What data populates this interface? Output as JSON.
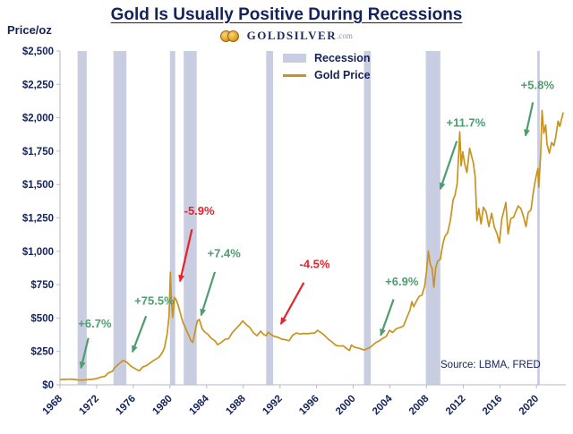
{
  "header": {
    "title": "Gold Is Usually Positive During Recessions",
    "logo_text": "GOLDSILVER",
    "logo_tld": ".com"
  },
  "chart": {
    "y_axis_title": "Price/oz",
    "source": "Source: LBMA, FRED",
    "legend": [
      {
        "label": "Recession"
      },
      {
        "label": "Gold Price"
      }
    ]
  },
  "chart_data": {
    "type": "line",
    "title": "Gold Is Usually Positive During Recessions",
    "xlabel": "",
    "ylabel": "Price/oz",
    "legend_entries": [
      "Recession",
      "Gold Price"
    ],
    "source": "Source: LBMA, FRED",
    "x_range": [
      1968,
      2023.2
    ],
    "y_range": [
      0,
      2500
    ],
    "y_tick_values": [
      0,
      250,
      500,
      750,
      1000,
      1250,
      1500,
      1750,
      2000,
      2250,
      2500
    ],
    "y_tick_labels": [
      "$0",
      "$250",
      "$500",
      "$750",
      "$1,000",
      "$1,250",
      "$1,500",
      "$1,750",
      "$2,000",
      "$2,250",
      "$2,500"
    ],
    "x_tick_values": [
      1968,
      1972,
      1976,
      1980,
      1984,
      1988,
      1992,
      1996,
      2000,
      2004,
      2008,
      2012,
      2016,
      2020
    ],
    "x_tick_labels": [
      "1968",
      "1972",
      "1976",
      "1980",
      "1984",
      "1988",
      "1992",
      "1996",
      "2000",
      "2004",
      "2008",
      "2012",
      "2016",
      "2020"
    ],
    "colors": {
      "gold": "#c8941f",
      "recession": "#c9cde2",
      "green": "#4f9d6e",
      "red": "#e9212a",
      "navy": "#14225a",
      "axis": "#b6bac8"
    },
    "recessions": [
      [
        1969.92,
        1970.92
      ],
      [
        1973.83,
        1975.25
      ],
      [
        1980.0,
        1980.58
      ],
      [
        1981.5,
        1982.92
      ],
      [
        1990.5,
        1991.25
      ],
      [
        2001.17,
        2001.92
      ],
      [
        2007.92,
        2009.5
      ],
      [
        2020.08,
        2020.33
      ]
    ],
    "series": [
      {
        "name": "Gold Price",
        "points": [
          [
            1968.0,
            39
          ],
          [
            1968.5,
            40
          ],
          [
            1969.0,
            42
          ],
          [
            1969.5,
            41
          ],
          [
            1970.0,
            36
          ],
          [
            1970.5,
            35
          ],
          [
            1971.0,
            39
          ],
          [
            1971.5,
            41
          ],
          [
            1972.0,
            46
          ],
          [
            1972.5,
            58
          ],
          [
            1972.9,
            64
          ],
          [
            1973.3,
            90
          ],
          [
            1973.7,
            100
          ],
          [
            1974.0,
            130
          ],
          [
            1974.4,
            155
          ],
          [
            1974.9,
            183
          ],
          [
            1975.3,
            168
          ],
          [
            1975.7,
            142
          ],
          [
            1976.0,
            128
          ],
          [
            1976.4,
            112
          ],
          [
            1976.7,
            106
          ],
          [
            1977.0,
            132
          ],
          [
            1977.5,
            146
          ],
          [
            1978.0,
            172
          ],
          [
            1978.4,
            190
          ],
          [
            1978.8,
            206
          ],
          [
            1979.1,
            233
          ],
          [
            1979.4,
            277
          ],
          [
            1979.7,
            385
          ],
          [
            1979.9,
            512
          ],
          [
            1980.05,
            843
          ],
          [
            1980.15,
            640
          ],
          [
            1980.3,
            505
          ],
          [
            1980.5,
            655
          ],
          [
            1980.7,
            635
          ],
          [
            1980.9,
            595
          ],
          [
            1981.1,
            545
          ],
          [
            1981.4,
            470
          ],
          [
            1981.7,
            425
          ],
          [
            1982.0,
            378
          ],
          [
            1982.3,
            330
          ],
          [
            1982.5,
            318
          ],
          [
            1982.8,
            420
          ],
          [
            1983.0,
            480
          ],
          [
            1983.2,
            490
          ],
          [
            1983.5,
            420
          ],
          [
            1983.8,
            395
          ],
          [
            1984.1,
            381
          ],
          [
            1984.5,
            348
          ],
          [
            1984.9,
            330
          ],
          [
            1985.2,
            300
          ],
          [
            1985.6,
            317
          ],
          [
            1986.0,
            340
          ],
          [
            1986.4,
            345
          ],
          [
            1986.8,
            390
          ],
          [
            1987.2,
            420
          ],
          [
            1987.6,
            450
          ],
          [
            1987.95,
            478
          ],
          [
            1988.3,
            452
          ],
          [
            1988.7,
            430
          ],
          [
            1989.1,
            390
          ],
          [
            1989.5,
            368
          ],
          [
            1989.9,
            402
          ],
          [
            1990.2,
            378
          ],
          [
            1990.5,
            368
          ],
          [
            1990.7,
            395
          ],
          [
            1991.0,
            378
          ],
          [
            1991.4,
            362
          ],
          [
            1991.8,
            355
          ],
          [
            1992.2,
            342
          ],
          [
            1992.6,
            338
          ],
          [
            1993.0,
            330
          ],
          [
            1993.4,
            372
          ],
          [
            1993.8,
            388
          ],
          [
            1994.2,
            380
          ],
          [
            1994.6,
            385
          ],
          [
            1995.0,
            382
          ],
          [
            1995.4,
            386
          ],
          [
            1995.8,
            388
          ],
          [
            1996.1,
            408
          ],
          [
            1996.5,
            390
          ],
          [
            1996.9,
            368
          ],
          [
            1997.3,
            340
          ],
          [
            1997.7,
            320
          ],
          [
            1998.1,
            295
          ],
          [
            1998.5,
            290
          ],
          [
            1998.9,
            292
          ],
          [
            1999.3,
            270
          ],
          [
            1999.6,
            257
          ],
          [
            1999.8,
            298
          ],
          [
            2000.1,
            283
          ],
          [
            2000.5,
            276
          ],
          [
            2000.9,
            268
          ],
          [
            2001.2,
            260
          ],
          [
            2001.5,
            270
          ],
          [
            2001.8,
            278
          ],
          [
            2002.1,
            295
          ],
          [
            2002.5,
            318
          ],
          [
            2002.9,
            332
          ],
          [
            2003.2,
            348
          ],
          [
            2003.6,
            362
          ],
          [
            2003.95,
            408
          ],
          [
            2004.3,
            392
          ],
          [
            2004.7,
            420
          ],
          [
            2005.1,
            428
          ],
          [
            2005.5,
            442
          ],
          [
            2005.9,
            512
          ],
          [
            2006.2,
            560
          ],
          [
            2006.4,
            622
          ],
          [
            2006.6,
            585
          ],
          [
            2006.9,
            628
          ],
          [
            2007.2,
            662
          ],
          [
            2007.5,
            672
          ],
          [
            2007.8,
            740
          ],
          [
            2008.0,
            850
          ],
          [
            2008.2,
            1002
          ],
          [
            2008.4,
            905
          ],
          [
            2008.6,
            872
          ],
          [
            2008.8,
            732
          ],
          [
            2009.0,
            878
          ],
          [
            2009.2,
            925
          ],
          [
            2009.5,
            940
          ],
          [
            2009.8,
            1060
          ],
          [
            2010.0,
            1110
          ],
          [
            2010.3,
            1140
          ],
          [
            2010.6,
            1230
          ],
          [
            2010.9,
            1385
          ],
          [
            2011.1,
            1420
          ],
          [
            2011.35,
            1510
          ],
          [
            2011.62,
            1895
          ],
          [
            2011.78,
            1640
          ],
          [
            2011.95,
            1745
          ],
          [
            2012.15,
            1660
          ],
          [
            2012.4,
            1590
          ],
          [
            2012.7,
            1772
          ],
          [
            2012.9,
            1715
          ],
          [
            2013.1,
            1665
          ],
          [
            2013.3,
            1560
          ],
          [
            2013.5,
            1230
          ],
          [
            2013.7,
            1320
          ],
          [
            2013.95,
            1205
          ],
          [
            2014.2,
            1330
          ],
          [
            2014.5,
            1295
          ],
          [
            2014.8,
            1185
          ],
          [
            2015.1,
            1285
          ],
          [
            2015.4,
            1180
          ],
          [
            2015.7,
            1130
          ],
          [
            2015.95,
            1062
          ],
          [
            2016.2,
            1240
          ],
          [
            2016.5,
            1320
          ],
          [
            2016.65,
            1365
          ],
          [
            2016.9,
            1130
          ],
          [
            2017.2,
            1245
          ],
          [
            2017.5,
            1255
          ],
          [
            2017.7,
            1290
          ],
          [
            2018.0,
            1340
          ],
          [
            2018.3,
            1320
          ],
          [
            2018.6,
            1255
          ],
          [
            2018.85,
            1185
          ],
          [
            2019.1,
            1290
          ],
          [
            2019.4,
            1310
          ],
          [
            2019.6,
            1420
          ],
          [
            2019.8,
            1505
          ],
          [
            2020.0,
            1575
          ],
          [
            2020.15,
            1620
          ],
          [
            2020.25,
            1480
          ],
          [
            2020.45,
            1730
          ],
          [
            2020.6,
            2055
          ],
          [
            2020.8,
            1885
          ],
          [
            2021.0,
            1945
          ],
          [
            2021.15,
            1800
          ],
          [
            2021.4,
            1735
          ],
          [
            2021.65,
            1815
          ],
          [
            2021.9,
            1790
          ],
          [
            2022.1,
            1855
          ],
          [
            2022.35,
            1975
          ],
          [
            2022.55,
            1935
          ],
          [
            2022.75,
            1995
          ],
          [
            2022.92,
            2040
          ]
        ]
      }
    ],
    "annotations": [
      {
        "text": "+6.7%",
        "color": "green",
        "x": 1971.8,
        "y": 430,
        "arrow": [
          1971.1,
          350,
          1970.3,
          125
        ]
      },
      {
        "text": "+75.5%",
        "color": "green",
        "x": 1978.3,
        "y": 600,
        "arrow": [
          1977.4,
          515,
          1975.9,
          245
        ]
      },
      {
        "text": "-5.9%",
        "color": "red",
        "x": 1983.2,
        "y": 1275,
        "arrow": [
          1982.4,
          1165,
          1981.1,
          775
        ]
      },
      {
        "text": "+7.4%",
        "color": "green",
        "x": 1985.9,
        "y": 955,
        "arrow": [
          1984.9,
          845,
          1983.4,
          520
        ]
      },
      {
        "text": "-4.5%",
        "color": "red",
        "x": 1995.8,
        "y": 875,
        "arrow": [
          1994.6,
          765,
          1992.1,
          455
        ]
      },
      {
        "text": "+6.9%",
        "color": "green",
        "x": 2005.3,
        "y": 745,
        "arrow": [
          2004.4,
          640,
          2003.0,
          370
        ]
      },
      {
        "text": "+11.7%",
        "color": "green",
        "x": 2012.3,
        "y": 1935,
        "arrow": [
          2011.3,
          1825,
          2009.5,
          1465
        ]
      },
      {
        "text": "+5.8%",
        "color": "green",
        "x": 2020.1,
        "y": 2215,
        "arrow": [
          2019.6,
          2115,
          2018.8,
          1865
        ]
      }
    ]
  }
}
